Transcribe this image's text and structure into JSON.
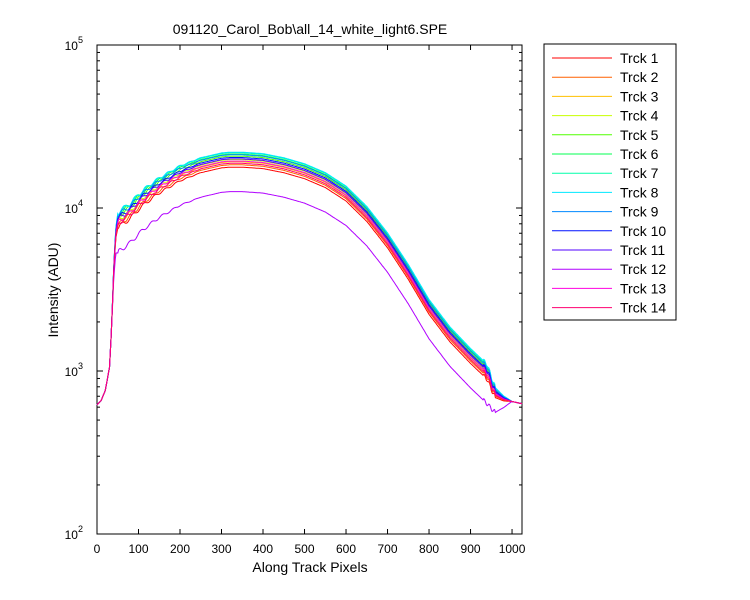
{
  "chart_data": {
    "type": "line",
    "title": "091120_Carol_Bob\\all_14_white_light6.SPE",
    "xlabel": "Along Track Pixels",
    "ylabel": "Intensity (ADU)",
    "xlim": [
      0,
      1024
    ],
    "ylim": [
      100,
      100000
    ],
    "yscale": "log",
    "xticks": [
      0,
      100,
      200,
      300,
      400,
      500,
      600,
      700,
      800,
      900,
      1000
    ],
    "yticks": [
      {
        "value": 100,
        "base": "10",
        "exp": "2"
      },
      {
        "value": 1000,
        "base": "10",
        "exp": "3"
      },
      {
        "value": 10000,
        "base": "10",
        "exp": "4"
      },
      {
        "value": 100000,
        "base": "10",
        "exp": "5"
      }
    ],
    "grid": false,
    "legend_position": "outside-right",
    "base_profile": {
      "x": [
        0,
        10,
        20,
        30,
        35,
        40,
        45,
        50,
        55,
        60,
        70,
        80,
        100,
        120,
        150,
        200,
        250,
        300,
        320,
        350,
        400,
        450,
        500,
        550,
        600,
        650,
        700,
        750,
        800,
        850,
        900,
        940,
        950,
        960,
        980,
        1000,
        1024
      ],
      "y": [
        620,
        660,
        760,
        1050,
        1800,
        4000,
        7000,
        8400,
        8700,
        8900,
        9300,
        9700,
        11000,
        12200,
        13900,
        16500,
        18500,
        19800,
        20000,
        20000,
        19600,
        18500,
        17000,
        15000,
        12400,
        9300,
        6400,
        4100,
        2500,
        1700,
        1250,
        1000,
        850,
        740,
        680,
        650,
        630
      ]
    },
    "series": [
      {
        "name": "Trck 1",
        "color": "#ff0000",
        "scale": 0.89
      },
      {
        "name": "Trck 2",
        "color": "#ff6000",
        "scale": 0.92
      },
      {
        "name": "Trck 3",
        "color": "#ffc000",
        "scale": 0.96
      },
      {
        "name": "Trck 4",
        "color": "#c8ff00",
        "scale": 0.99
      },
      {
        "name": "Trck 5",
        "color": "#50ff00",
        "scale": 1.04
      },
      {
        "name": "Trck 6",
        "color": "#00ff50",
        "scale": 1.07
      },
      {
        "name": "Trck 7",
        "color": "#00ffaa",
        "scale": 1.09
      },
      {
        "name": "Trck 8",
        "color": "#00e8ff",
        "scale": 1.1
      },
      {
        "name": "Trck 9",
        "color": "#0088ff",
        "scale": 1.06
      },
      {
        "name": "Trck 10",
        "color": "#0010ff",
        "scale": 1.02
      },
      {
        "name": "Trck 11",
        "color": "#5000ff",
        "scale": 1.0
      },
      {
        "name": "Trck 12",
        "color": "#b000ff",
        "scale": 0.63
      },
      {
        "name": "Trck 13",
        "color": "#ff00e0",
        "scale": 0.97
      },
      {
        "name": "Trck 14",
        "color": "#ff0070",
        "scale": 0.94
      }
    ]
  }
}
